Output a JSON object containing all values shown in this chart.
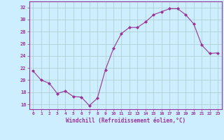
{
  "x": [
    0,
    1,
    2,
    3,
    4,
    5,
    6,
    7,
    8,
    9,
    10,
    11,
    12,
    13,
    14,
    15,
    16,
    17,
    18,
    19,
    20,
    21,
    22,
    23
  ],
  "y": [
    21.5,
    20.0,
    19.5,
    17.8,
    18.2,
    17.3,
    17.2,
    15.8,
    17.0,
    21.7,
    25.2,
    27.7,
    28.7,
    28.7,
    29.6,
    30.8,
    31.3,
    31.8,
    31.8,
    30.8,
    29.3,
    25.8,
    24.4,
    24.5
  ],
  "line_color": "#993399",
  "marker": "D",
  "markersize": 2.0,
  "linewidth": 0.8,
  "bg_color": "#cceeff",
  "grid_color": "#aacccc",
  "xlabel": "Windchill (Refroidissement éolien,°C)",
  "yticks": [
    16,
    18,
    20,
    22,
    24,
    26,
    28,
    30,
    32
  ],
  "xticks": [
    0,
    1,
    2,
    3,
    4,
    5,
    6,
    7,
    8,
    9,
    10,
    11,
    12,
    13,
    14,
    15,
    16,
    17,
    18,
    19,
    20,
    21,
    22,
    23
  ],
  "ylim": [
    15.2,
    33.0
  ],
  "xlim": [
    -0.5,
    23.5
  ]
}
